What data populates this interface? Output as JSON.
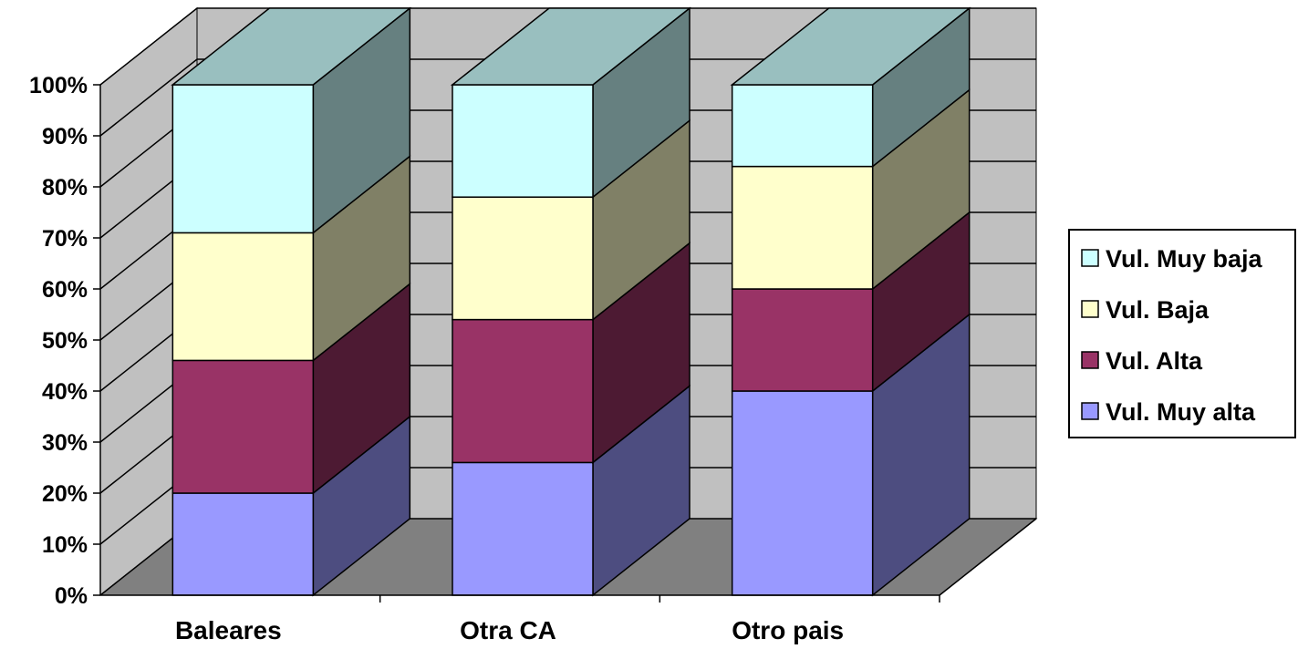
{
  "chart_data": {
    "type": "bar",
    "stacked": true,
    "percent_stacked": true,
    "three_d": true,
    "categories": [
      "Baleares",
      "Otra CA",
      "Otro pais"
    ],
    "series": [
      {
        "name": "Vul. Muy alta",
        "values": [
          20,
          26,
          40
        ],
        "color": "#9999ff"
      },
      {
        "name": "Vul. Alta",
        "values": [
          26,
          28,
          20
        ],
        "color": "#993366"
      },
      {
        "name": "Vul. Baja",
        "values": [
          25,
          24,
          24
        ],
        "color": "#ffffcc"
      },
      {
        "name": "Vul. Muy baja",
        "values": [
          29,
          22,
          16
        ],
        "color": "#ccffff"
      }
    ],
    "ylim": [
      0,
      100
    ],
    "yticks": [
      "0%",
      "10%",
      "20%",
      "30%",
      "40%",
      "50%",
      "60%",
      "70%",
      "80%",
      "90%",
      "100%"
    ],
    "grid": true,
    "legend_position": "right",
    "legend_order": [
      "Vul. Muy baja",
      "Vul. Baja",
      "Vul. Alta",
      "Vul. Muy alta"
    ],
    "colors": {
      "back_wall": "#c0c0c0",
      "side_wall": "#c0c0c0",
      "floor": "#808080",
      "gridline": "#000000"
    }
  }
}
